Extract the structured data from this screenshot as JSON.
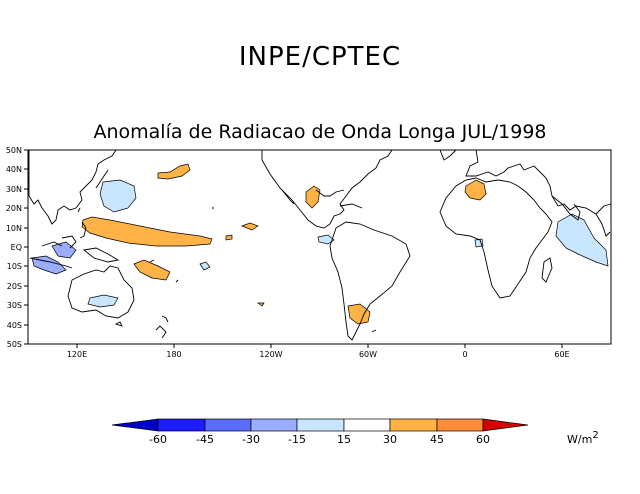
{
  "header": {
    "title": "INPE/CPTEC"
  },
  "map": {
    "title": "Anomalía de Radiacao de Onda Longa JUL/1998",
    "lat_labels": [
      "50N",
      "40N",
      "30N",
      "20N",
      "10N",
      "EQ",
      "10S",
      "20S",
      "30S",
      "40S",
      "50S"
    ],
    "lon_labels": [
      "120E",
      "180",
      "120W",
      "60W",
      "0",
      "60E"
    ]
  },
  "legend": {
    "labels": [
      "-60",
      "-45",
      "-30",
      "-15",
      "15",
      "30",
      "45",
      "60"
    ],
    "colors": [
      "#1c1cff",
      "#5a6bff",
      "#9aadff",
      "#c8e6ff",
      "#ffffff",
      "#ffb347",
      "#ff8c3a",
      "#ff5a1e",
      "#d40000",
      "#0000c8"
    ],
    "unit": "W/m",
    "unit_sup": "2"
  },
  "colors": {
    "negative_fill": "#c8e6ff",
    "negative_fill_strong": "#9aadff",
    "positive_fill": "#ffb347"
  }
}
